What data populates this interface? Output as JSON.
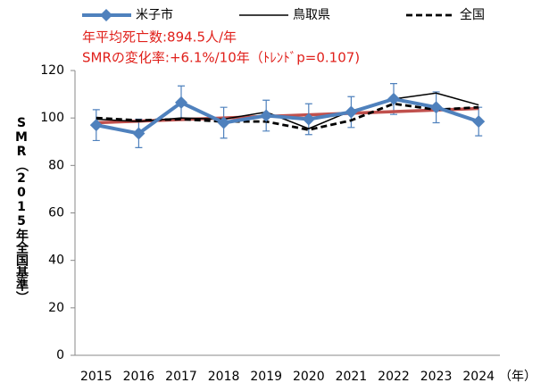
{
  "chart_data": {
    "type": "line",
    "annotations": [
      "年平均死亡数:894.5人/年",
      "SMRの変化率:+6.1%/10年（ﾄﾚﾝﾄﾞp=0.107)"
    ],
    "ylabel": "SMR（2015年全国基準）",
    "xlabel": "（年）",
    "categories": [
      "2015",
      "2016",
      "2017",
      "2018",
      "2019",
      "2020",
      "2021",
      "2022",
      "2023",
      "2024"
    ],
    "series": [
      {
        "name": "米子市",
        "color": "#4f81bd",
        "values": [
          97,
          93.5,
          106.5,
          98,
          101,
          99.5,
          102.5,
          108,
          104.5,
          98.5
        ],
        "errors": [
          6.5,
          6,
          7,
          6.5,
          6.5,
          6.5,
          6.5,
          6.5,
          6.5,
          6
        ]
      },
      {
        "name": "鳥取県",
        "color": "#000000",
        "values": [
          99.5,
          98.5,
          100,
          99.5,
          102.5,
          95.5,
          103,
          108,
          110.5,
          105.5
        ]
      },
      {
        "name": "全国",
        "color": "#000000",
        "dashed": true,
        "values": [
          100,
          99,
          99.5,
          98.5,
          98.5,
          95,
          99,
          106,
          103.5,
          104.5
        ]
      }
    ],
    "trend": {
      "color": "#c0504d",
      "start": 98,
      "end": 104
    },
    "ylim": [
      0,
      120
    ],
    "yticks": [
      0,
      20,
      40,
      60,
      80,
      100,
      120
    ],
    "grid": false
  }
}
